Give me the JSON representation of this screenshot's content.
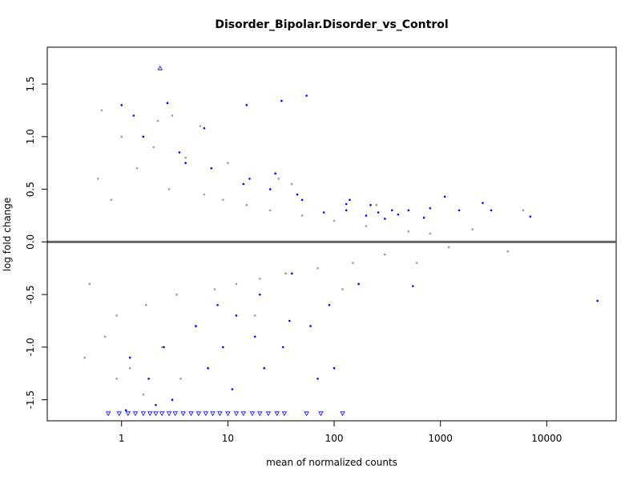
{
  "chart_data": {
    "type": "scatter",
    "title": "Disorder_Bipolar.Disorder_vs_Control",
    "xlabel": "mean of normalized counts",
    "ylabel": "log fold change",
    "x_scale": "log10",
    "xlim": [
      0.2,
      45000
    ],
    "ylim": [
      -1.7,
      1.85
    ],
    "x_ticks": [
      1,
      10,
      100,
      1000,
      10000
    ],
    "x_tick_labels": [
      "1",
      "10",
      "100",
      "1000",
      "10000"
    ],
    "y_ticks": [
      -1.5,
      -1.0,
      -0.5,
      0.0,
      0.5,
      1.0,
      1.5
    ],
    "y_tick_labels": [
      "-1.5",
      "-1.0",
      "-0.5",
      "0.0",
      "0.5",
      "1.0",
      "1.5"
    ],
    "reference_line": {
      "y": 0,
      "color": "#666666"
    },
    "colors": {
      "not_significant": "#999999",
      "significant": "#0000ff"
    },
    "series": [
      {
        "name": "",
        "color": "#999999",
        "marker": "point",
        "points": [
          [
            0.5,
            -0.4
          ],
          [
            0.6,
            0.6
          ],
          [
            0.7,
            -0.9
          ],
          [
            0.8,
            0.4
          ],
          [
            0.9,
            -0.7
          ],
          [
            1.0,
            1.0
          ],
          [
            1.2,
            -1.2
          ],
          [
            1.4,
            0.7
          ],
          [
            1.7,
            -0.6
          ],
          [
            2.0,
            0.9
          ],
          [
            2.4,
            -1.0
          ],
          [
            2.8,
            0.5
          ],
          [
            3.3,
            -0.5
          ],
          [
            4.0,
            0.8
          ],
          [
            5.0,
            -0.8
          ],
          [
            6.0,
            0.45
          ],
          [
            7.5,
            -0.45
          ],
          [
            9.0,
            0.4
          ],
          [
            12,
            -0.4
          ],
          [
            15,
            0.35
          ],
          [
            20,
            -0.35
          ],
          [
            25,
            0.3
          ],
          [
            35,
            -0.3
          ],
          [
            50,
            0.25
          ],
          [
            70,
            -0.25
          ],
          [
            100,
            0.2
          ],
          [
            150,
            -0.2
          ],
          [
            200,
            0.15
          ],
          [
            300,
            -0.12
          ],
          [
            500,
            0.1
          ],
          [
            800,
            0.08
          ],
          [
            1200,
            -0.05
          ],
          [
            2000,
            0.12
          ],
          [
            4300,
            -0.09
          ],
          [
            6000,
            0.3
          ],
          [
            0.9,
            -1.3
          ],
          [
            2.2,
            1.15
          ],
          [
            1.6,
            -1.45
          ],
          [
            3.0,
            1.2
          ],
          [
            0.65,
            1.25
          ],
          [
            0.45,
            -1.1
          ],
          [
            10,
            0.75
          ],
          [
            18,
            -0.7
          ],
          [
            40,
            0.55
          ],
          [
            120,
            -0.45
          ],
          [
            250,
            0.35
          ],
          [
            600,
            -0.2
          ],
          [
            30,
            0.6
          ],
          [
            5.5,
            1.1
          ],
          [
            3.6,
            -1.3
          ]
        ]
      },
      {
        "name": "",
        "color": "#0000ff",
        "marker": "point",
        "points": [
          [
            1.0,
            1.3
          ],
          [
            1.3,
            1.2
          ],
          [
            2.7,
            1.32
          ],
          [
            6.0,
            1.08
          ],
          [
            15,
            1.3
          ],
          [
            32,
            1.34
          ],
          [
            55,
            1.39
          ],
          [
            8,
            -0.6
          ],
          [
            12,
            -0.7
          ],
          [
            20,
            -0.5
          ],
          [
            40,
            -0.3
          ],
          [
            80,
            0.28
          ],
          [
            130,
            0.3
          ],
          [
            200,
            0.25
          ],
          [
            300,
            0.22
          ],
          [
            500,
            0.3
          ],
          [
            800,
            0.32
          ],
          [
            1500,
            0.3
          ],
          [
            3000,
            0.3
          ],
          [
            7000,
            0.24
          ],
          [
            30000,
            -0.56
          ],
          [
            1.2,
            -1.1
          ],
          [
            1.8,
            -1.3
          ],
          [
            2.5,
            -1.0
          ],
          [
            3.0,
            -1.5
          ],
          [
            4,
            0.75
          ],
          [
            5,
            -0.8
          ],
          [
            6.5,
            -1.2
          ],
          [
            9,
            -1.0
          ],
          [
            14,
            0.55
          ],
          [
            18,
            -0.9
          ],
          [
            25,
            0.5
          ],
          [
            33,
            -1.0
          ],
          [
            45,
            0.45
          ],
          [
            60,
            -0.8
          ],
          [
            90,
            -0.6
          ],
          [
            140,
            0.4
          ],
          [
            220,
            0.35
          ],
          [
            350,
            0.3
          ],
          [
            550,
            -0.42
          ],
          [
            1.1,
            -1.6
          ],
          [
            1.6,
            1.0
          ],
          [
            2.1,
            -1.55
          ],
          [
            3.5,
            0.85
          ],
          [
            7,
            0.7
          ],
          [
            11,
            -1.4
          ],
          [
            16,
            0.6
          ],
          [
            22,
            -1.2
          ],
          [
            28,
            0.65
          ],
          [
            38,
            -0.75
          ],
          [
            50,
            0.4
          ],
          [
            70,
            -1.3
          ],
          [
            100,
            -1.2
          ],
          [
            130,
            0.36
          ],
          [
            170,
            -0.4
          ],
          [
            260,
            0.28
          ],
          [
            400,
            0.26
          ],
          [
            700,
            0.23
          ],
          [
            1100,
            0.43
          ],
          [
            2500,
            0.37
          ]
        ]
      },
      {
        "name": "",
        "color": "#0000ff",
        "marker": "triangle-down",
        "points": [
          [
            0.75,
            -1.63
          ],
          [
            0.95,
            -1.63
          ],
          [
            1.15,
            -1.63
          ],
          [
            1.35,
            -1.63
          ],
          [
            1.6,
            -1.63
          ],
          [
            1.85,
            -1.63
          ],
          [
            2.1,
            -1.63
          ],
          [
            2.4,
            -1.63
          ],
          [
            2.8,
            -1.63
          ],
          [
            3.2,
            -1.63
          ],
          [
            3.8,
            -1.63
          ],
          [
            4.5,
            -1.63
          ],
          [
            5.3,
            -1.63
          ],
          [
            6.2,
            -1.63
          ],
          [
            7.2,
            -1.63
          ],
          [
            8.4,
            -1.63
          ],
          [
            10,
            -1.63
          ],
          [
            12,
            -1.63
          ],
          [
            14,
            -1.63
          ],
          [
            17,
            -1.63
          ],
          [
            20,
            -1.63
          ],
          [
            24,
            -1.63
          ],
          [
            29,
            -1.63
          ],
          [
            34,
            -1.63
          ],
          [
            55,
            -1.63
          ],
          [
            75,
            -1.63
          ],
          [
            120,
            -1.63
          ]
        ]
      },
      {
        "name": "",
        "color": "#0000ff",
        "marker": "triangle-up",
        "points": [
          [
            2.3,
            1.65
          ]
        ]
      }
    ]
  }
}
